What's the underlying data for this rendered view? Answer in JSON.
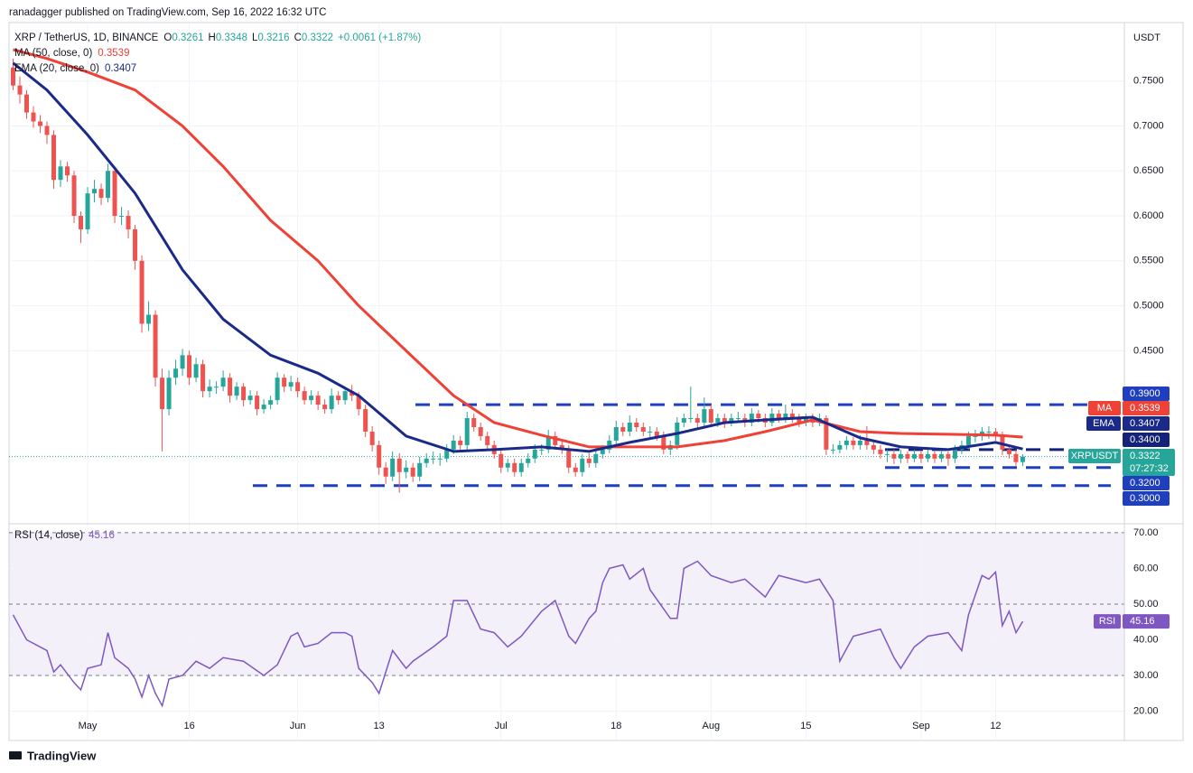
{
  "header": {
    "published": "ranadagger published on TradingView.com, Sep 16, 2022 16:32 UTC",
    "logo": "TradingView"
  },
  "chart_data": {
    "type": "candlestick",
    "symbol": "XRP / TetherUS, 1D, BINANCE",
    "ohlc_labels": [
      "O",
      "H",
      "L",
      "C"
    ],
    "change": "+0.0061 (+1.87%)",
    "currency": "USDT",
    "ticker": "XRPUSDT",
    "countdown": "07:27:32",
    "up_color": "#26a69a",
    "down_color": "#ef5350",
    "xlim": [
      -0.6,
      164
    ],
    "ylim": [
      0.2575,
      0.815
    ],
    "xticks": [
      {
        "value": 11,
        "label": "May"
      },
      {
        "value": 26,
        "label": "16"
      },
      {
        "value": 42,
        "label": "Jun"
      },
      {
        "value": 54,
        "label": "13"
      },
      {
        "value": 72,
        "label": "Jul"
      },
      {
        "value": 89,
        "label": "18"
      },
      {
        "value": 103,
        "label": "Aug"
      },
      {
        "value": 117,
        "label": "15"
      },
      {
        "value": 134,
        "label": "Sep"
      },
      {
        "value": 145,
        "label": "12"
      }
    ],
    "yticks": [
      {
        "value": 0.45,
        "label": "0.4500"
      },
      {
        "value": 0.5,
        "label": "0.5000"
      },
      {
        "value": 0.55,
        "label": "0.5500"
      },
      {
        "value": 0.6,
        "label": "0.6000"
      },
      {
        "value": 0.65,
        "label": "0.6500"
      },
      {
        "value": 0.7,
        "label": "0.7000"
      },
      {
        "value": 0.75,
        "label": "0.7500"
      }
    ],
    "grid": true,
    "levels": [
      {
        "value": 0.39,
        "label": "0.3900",
        "color": "#1f3fbf"
      },
      {
        "value": 0.34,
        "label": "0.3400",
        "color": "#14237a"
      },
      {
        "value": 0.32,
        "label": "0.3200",
        "color": "#1f3fbf"
      },
      {
        "value": 0.3,
        "label": "0.3000",
        "color": "#1f3fbf"
      }
    ],
    "candles": [
      [
        0.765,
        0.775,
        0.74,
        0.745
      ],
      [
        0.745,
        0.755,
        0.725,
        0.735
      ],
      [
        0.735,
        0.74,
        0.708,
        0.715
      ],
      [
        0.715,
        0.722,
        0.698,
        0.705
      ],
      [
        0.705,
        0.712,
        0.692,
        0.7
      ],
      [
        0.7,
        0.705,
        0.68,
        0.69
      ],
      [
        0.69,
        0.695,
        0.63,
        0.64
      ],
      [
        0.64,
        0.662,
        0.632,
        0.655
      ],
      [
        0.655,
        0.66,
        0.638,
        0.645
      ],
      [
        0.645,
        0.65,
        0.592,
        0.6
      ],
      [
        0.6,
        0.605,
        0.57,
        0.585
      ],
      [
        0.585,
        0.632,
        0.58,
        0.625
      ],
      [
        0.625,
        0.64,
        0.615,
        0.63
      ],
      [
        0.63,
        0.636,
        0.612,
        0.62
      ],
      [
        0.62,
        0.658,
        0.615,
        0.65
      ],
      [
        0.65,
        0.655,
        0.592,
        0.6
      ],
      [
        0.6,
        0.61,
        0.59,
        0.6
      ],
      [
        0.6,
        0.606,
        0.575,
        0.585
      ],
      [
        0.585,
        0.59,
        0.54,
        0.55
      ],
      [
        0.55,
        0.556,
        0.47,
        0.48
      ],
      [
        0.48,
        0.505,
        0.472,
        0.49
      ],
      [
        0.49,
        0.495,
        0.41,
        0.42
      ],
      [
        0.42,
        0.43,
        0.338,
        0.385
      ],
      [
        0.385,
        0.428,
        0.378,
        0.42
      ],
      [
        0.42,
        0.44,
        0.412,
        0.43
      ],
      [
        0.43,
        0.452,
        0.422,
        0.445
      ],
      [
        0.445,
        0.45,
        0.412,
        0.42
      ],
      [
        0.42,
        0.442,
        0.415,
        0.435
      ],
      [
        0.435,
        0.44,
        0.398,
        0.405
      ],
      [
        0.405,
        0.418,
        0.398,
        0.41
      ],
      [
        0.41,
        0.416,
        0.402,
        0.41
      ],
      [
        0.41,
        0.428,
        0.405,
        0.42
      ],
      [
        0.42,
        0.425,
        0.392,
        0.4
      ],
      [
        0.4,
        0.415,
        0.395,
        0.41
      ],
      [
        0.41,
        0.414,
        0.388,
        0.395
      ],
      [
        0.395,
        0.406,
        0.39,
        0.4
      ],
      [
        0.4,
        0.405,
        0.378,
        0.385
      ],
      [
        0.385,
        0.396,
        0.38,
        0.39
      ],
      [
        0.39,
        0.4,
        0.385,
        0.395
      ],
      [
        0.395,
        0.426,
        0.39,
        0.42
      ],
      [
        0.42,
        0.424,
        0.404,
        0.41
      ],
      [
        0.41,
        0.422,
        0.405,
        0.415
      ],
      [
        0.415,
        0.42,
        0.398,
        0.405
      ],
      [
        0.405,
        0.41,
        0.39,
        0.395
      ],
      [
        0.395,
        0.406,
        0.39,
        0.4
      ],
      [
        0.4,
        0.405,
        0.384,
        0.39
      ],
      [
        0.39,
        0.396,
        0.38,
        0.385
      ],
      [
        0.385,
        0.408,
        0.38,
        0.4
      ],
      [
        0.4,
        0.405,
        0.39,
        0.395
      ],
      [
        0.395,
        0.41,
        0.39,
        0.405
      ],
      [
        0.405,
        0.412,
        0.394,
        0.4
      ],
      [
        0.4,
        0.404,
        0.378,
        0.385
      ],
      [
        0.385,
        0.39,
        0.354,
        0.36
      ],
      [
        0.36,
        0.366,
        0.338,
        0.345
      ],
      [
        0.345,
        0.35,
        0.312,
        0.32
      ],
      [
        0.32,
        0.326,
        0.302,
        0.31
      ],
      [
        0.31,
        0.338,
        0.305,
        0.33
      ],
      [
        0.33,
        0.336,
        0.292,
        0.315
      ],
      [
        0.315,
        0.328,
        0.308,
        0.32
      ],
      [
        0.32,
        0.325,
        0.304,
        0.31
      ],
      [
        0.31,
        0.332,
        0.305,
        0.325
      ],
      [
        0.325,
        0.336,
        0.32,
        0.33
      ],
      [
        0.33,
        0.338,
        0.324,
        0.33
      ],
      [
        0.33,
        0.336,
        0.322,
        0.33
      ],
      [
        0.33,
        0.346,
        0.326,
        0.34
      ],
      [
        0.34,
        0.356,
        0.335,
        0.35
      ],
      [
        0.35,
        0.355,
        0.34,
        0.345
      ],
      [
        0.345,
        0.382,
        0.34,
        0.375
      ],
      [
        0.375,
        0.38,
        0.36,
        0.365
      ],
      [
        0.365,
        0.37,
        0.35,
        0.355
      ],
      [
        0.355,
        0.36,
        0.34,
        0.345
      ],
      [
        0.345,
        0.35,
        0.33,
        0.335
      ],
      [
        0.335,
        0.34,
        0.314,
        0.32
      ],
      [
        0.32,
        0.33,
        0.315,
        0.325
      ],
      [
        0.325,
        0.33,
        0.31,
        0.315
      ],
      [
        0.315,
        0.33,
        0.31,
        0.325
      ],
      [
        0.325,
        0.336,
        0.32,
        0.33
      ],
      [
        0.33,
        0.346,
        0.325,
        0.34
      ],
      [
        0.34,
        0.346,
        0.334,
        0.34
      ],
      [
        0.34,
        0.362,
        0.336,
        0.355
      ],
      [
        0.355,
        0.36,
        0.34,
        0.345
      ],
      [
        0.345,
        0.35,
        0.335,
        0.34
      ],
      [
        0.34,
        0.345,
        0.314,
        0.32
      ],
      [
        0.32,
        0.325,
        0.31,
        0.315
      ],
      [
        0.315,
        0.335,
        0.31,
        0.33
      ],
      [
        0.33,
        0.336,
        0.32,
        0.325
      ],
      [
        0.325,
        0.34,
        0.32,
        0.335
      ],
      [
        0.335,
        0.345,
        0.33,
        0.34
      ],
      [
        0.34,
        0.356,
        0.336,
        0.35
      ],
      [
        0.35,
        0.372,
        0.345,
        0.365
      ],
      [
        0.365,
        0.37,
        0.355,
        0.36
      ],
      [
        0.36,
        0.378,
        0.355,
        0.37
      ],
      [
        0.37,
        0.375,
        0.36,
        0.365
      ],
      [
        0.365,
        0.37,
        0.355,
        0.36
      ],
      [
        0.36,
        0.366,
        0.354,
        0.36
      ],
      [
        0.36,
        0.365,
        0.35,
        0.355
      ],
      [
        0.355,
        0.36,
        0.335,
        0.34
      ],
      [
        0.34,
        0.35,
        0.334,
        0.345
      ],
      [
        0.345,
        0.376,
        0.34,
        0.37
      ],
      [
        0.37,
        0.38,
        0.365,
        0.375
      ],
      [
        0.375,
        0.41,
        0.37,
        0.375
      ],
      [
        0.375,
        0.38,
        0.364,
        0.37
      ],
      [
        0.37,
        0.398,
        0.366,
        0.385
      ],
      [
        0.385,
        0.39,
        0.365,
        0.37
      ],
      [
        0.37,
        0.38,
        0.365,
        0.375
      ],
      [
        0.375,
        0.38,
        0.364,
        0.37
      ],
      [
        0.37,
        0.38,
        0.366,
        0.375
      ],
      [
        0.375,
        0.382,
        0.37,
        0.375
      ],
      [
        0.375,
        0.38,
        0.365,
        0.37
      ],
      [
        0.37,
        0.386,
        0.366,
        0.38
      ],
      [
        0.38,
        0.384,
        0.37,
        0.375
      ],
      [
        0.375,
        0.38,
        0.365,
        0.37
      ],
      [
        0.37,
        0.386,
        0.366,
        0.38
      ],
      [
        0.38,
        0.384,
        0.37,
        0.375
      ],
      [
        0.375,
        0.39,
        0.37,
        0.38
      ],
      [
        0.38,
        0.385,
        0.37,
        0.375
      ],
      [
        0.375,
        0.38,
        0.365,
        0.37
      ],
      [
        0.37,
        0.38,
        0.366,
        0.375
      ],
      [
        0.375,
        0.38,
        0.365,
        0.37
      ],
      [
        0.37,
        0.38,
        0.366,
        0.375
      ],
      [
        0.375,
        0.378,
        0.334,
        0.34
      ],
      [
        0.34,
        0.346,
        0.335,
        0.34
      ],
      [
        0.34,
        0.35,
        0.336,
        0.345
      ],
      [
        0.345,
        0.355,
        0.34,
        0.35
      ],
      [
        0.35,
        0.354,
        0.34,
        0.345
      ],
      [
        0.345,
        0.356,
        0.34,
        0.35
      ],
      [
        0.35,
        0.366,
        0.34,
        0.345
      ],
      [
        0.345,
        0.35,
        0.335,
        0.34
      ],
      [
        0.34,
        0.345,
        0.33,
        0.335
      ],
      [
        0.335,
        0.34,
        0.326,
        0.335
      ],
      [
        0.335,
        0.34,
        0.324,
        0.33
      ],
      [
        0.33,
        0.34,
        0.325,
        0.335
      ],
      [
        0.335,
        0.338,
        0.325,
        0.33
      ],
      [
        0.33,
        0.34,
        0.326,
        0.335
      ],
      [
        0.335,
        0.338,
        0.325,
        0.33
      ],
      [
        0.33,
        0.34,
        0.326,
        0.335
      ],
      [
        0.335,
        0.338,
        0.325,
        0.33
      ],
      [
        0.33,
        0.34,
        0.326,
        0.335
      ],
      [
        0.335,
        0.338,
        0.322,
        0.33
      ],
      [
        0.33,
        0.345,
        0.325,
        0.34
      ],
      [
        0.34,
        0.35,
        0.335,
        0.345
      ],
      [
        0.345,
        0.36,
        0.34,
        0.355
      ],
      [
        0.355,
        0.362,
        0.348,
        0.355
      ],
      [
        0.355,
        0.365,
        0.35,
        0.36
      ],
      [
        0.36,
        0.366,
        0.352,
        0.36
      ],
      [
        0.36,
        0.364,
        0.35,
        0.355
      ],
      [
        0.355,
        0.36,
        0.334,
        0.34
      ],
      [
        0.34,
        0.345,
        0.33,
        0.335
      ],
      [
        0.335,
        0.34,
        0.322,
        0.3261
      ],
      [
        0.3261,
        0.3348,
        0.3216,
        0.3322
      ]
    ],
    "series": [
      {
        "name": "MA",
        "legend_label": "MA (50, close, 0)",
        "color": "#ef4135",
        "x": [
          0,
          5,
          11,
          18,
          25,
          31,
          38,
          45,
          51,
          58,
          65,
          71,
          78,
          85,
          91,
          98,
          105,
          111,
          118,
          125,
          131,
          138,
          145,
          149
        ],
        "values": [
          0.785,
          0.775,
          0.76,
          0.74,
          0.7,
          0.655,
          0.595,
          0.55,
          0.5,
          0.45,
          0.4,
          0.37,
          0.356,
          0.343,
          0.343,
          0.343,
          0.35,
          0.36,
          0.373,
          0.36,
          0.358,
          0.357,
          0.356,
          0.3539
        ]
      },
      {
        "name": "EMA",
        "legend_label": "EMA (20, close, 0)",
        "color": "#1a2a8a",
        "x": [
          0,
          5,
          11,
          18,
          25,
          31,
          38,
          45,
          51,
          58,
          65,
          71,
          78,
          85,
          91,
          98,
          105,
          111,
          118,
          125,
          131,
          138,
          145,
          149
        ],
        "values": [
          0.77,
          0.74,
          0.69,
          0.625,
          0.54,
          0.485,
          0.445,
          0.425,
          0.4,
          0.355,
          0.338,
          0.34,
          0.343,
          0.338,
          0.348,
          0.358,
          0.37,
          0.373,
          0.376,
          0.353,
          0.343,
          0.34,
          0.348,
          0.3407
        ]
      }
    ],
    "rsi": {
      "type": "line",
      "name": "RSI",
      "legend_label": "RSI (14, close)",
      "color": "#7e57c2",
      "ylim": [
        11.8,
        72.5
      ],
      "yticks": [
        {
          "value": 20,
          "label": "20.00"
        },
        {
          "value": 30,
          "label": "30.00"
        },
        {
          "value": 40,
          "label": "40.00"
        },
        {
          "value": 50,
          "label": "50.00"
        },
        {
          "value": 60,
          "label": "60.00"
        },
        {
          "value": 70,
          "label": "70.00"
        }
      ],
      "levels": [
        30,
        50,
        70
      ],
      "x": [
        0,
        2,
        5,
        6,
        7,
        9,
        10,
        11,
        13,
        14,
        15,
        17,
        18,
        19,
        20,
        21,
        22,
        23,
        25,
        26,
        27,
        29,
        31,
        34,
        37,
        39,
        41,
        42,
        43,
        45,
        47,
        49,
        50,
        51,
        53,
        54,
        56,
        58,
        59,
        62,
        64,
        65,
        67,
        69,
        71,
        73,
        75,
        78,
        80,
        82,
        83,
        85,
        86,
        87,
        88,
        90,
        91,
        93,
        94,
        97,
        98,
        99,
        101,
        103,
        106,
        108,
        111,
        113,
        117,
        119,
        121,
        122,
        124,
        126,
        128,
        130,
        131,
        133,
        135,
        138,
        140,
        141,
        143,
        144,
        145,
        146,
        147,
        148,
        149
      ],
      "values": [
        47,
        40,
        37,
        31,
        33,
        28,
        26,
        32,
        33,
        42,
        35,
        32,
        29,
        24,
        30,
        25,
        21.5,
        29,
        30,
        32,
        34,
        32,
        35,
        34,
        30,
        33,
        41,
        42,
        38,
        39,
        42,
        42,
        41,
        32,
        28,
        25,
        37,
        32,
        34,
        38,
        41,
        51,
        51,
        43,
        42,
        38,
        41,
        48,
        51,
        41,
        39,
        46,
        48,
        56,
        60,
        61,
        57,
        60,
        54,
        46,
        46,
        60,
        62,
        58,
        56,
        57,
        52,
        58,
        56,
        57,
        51,
        34,
        41,
        42,
        43,
        35,
        32,
        38,
        41,
        42,
        37,
        47,
        58,
        57,
        59,
        44,
        48,
        42,
        45.16
      ]
    }
  }
}
